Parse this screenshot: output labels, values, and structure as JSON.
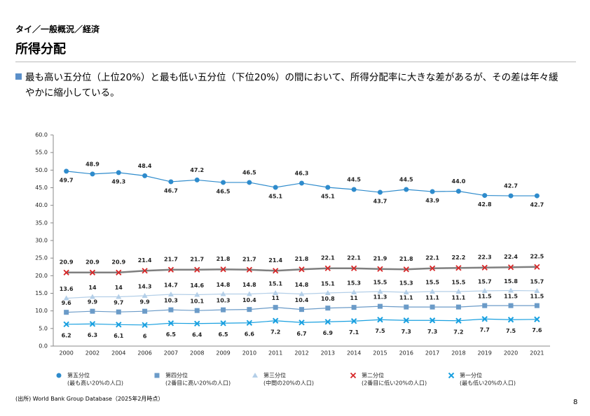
{
  "breadcrumb": "タイ／一般概況／経済",
  "heading": "所得分配",
  "bullet": "最も高い五分位（上位20%）と最も低い五分位（下位20%）の間において、所得分配率に大きな差があるが、その差は年々緩やかに縮小している。",
  "chart_data": {
    "type": "line",
    "categories": [
      "2000",
      "2002",
      "2004",
      "2006",
      "2007",
      "2008",
      "2009",
      "2010",
      "2011",
      "2012",
      "2013",
      "2014",
      "2015",
      "2016",
      "2017",
      "2018",
      "2019",
      "2020",
      "2021"
    ],
    "ylim": [
      0,
      60
    ],
    "yticks": [
      {
        "value": 0,
        "label": "0.0"
      },
      {
        "value": 5,
        "label": "5.0"
      },
      {
        "value": 10,
        "label": "10.0"
      },
      {
        "value": 15,
        "label": "15.0"
      },
      {
        "value": 20,
        "label": "20.0"
      },
      {
        "value": 25,
        "label": "25.0"
      },
      {
        "value": 30,
        "label": "30.0"
      },
      {
        "value": 35,
        "label": "35.0"
      },
      {
        "value": 40,
        "label": "40.0"
      },
      {
        "value": 45,
        "label": "45.0"
      },
      {
        "value": 50,
        "label": "50.0"
      },
      {
        "value": 55,
        "label": "55.0"
      },
      {
        "value": 60,
        "label": "60.0"
      }
    ],
    "series": [
      {
        "name": "第五分位",
        "note": "(最も高い20%の人口)",
        "color": "#2e8bcc",
        "marker": "circle",
        "values": [
          49.7,
          48.9,
          49.3,
          48.4,
          46.7,
          47.2,
          46.5,
          46.5,
          45.1,
          46.3,
          45.1,
          44.5,
          43.7,
          44.5,
          43.9,
          44,
          42.8,
          42.7,
          42.7
        ],
        "value_labels": [
          "49.7",
          "48.9",
          "49.3",
          "48.4",
          "46.7",
          "47.2",
          "46.5",
          "46.5",
          "45.1",
          "46.3",
          "45.1",
          "44.5",
          "43.7",
          "44.5",
          "43.9",
          "44.0",
          "42.8",
          "42.7",
          "42.7"
        ]
      },
      {
        "name": "第四分位",
        "note": "(2番目に高い20%の人口)",
        "color": "#6b9bc8",
        "marker": "square",
        "values": [
          9.6,
          9.9,
          9.7,
          9.9,
          10.3,
          10.1,
          10.3,
          10.4,
          11,
          10.4,
          10.8,
          11,
          11.3,
          11.1,
          11.1,
          11.1,
          11.5,
          11.5,
          11.5
        ]
      },
      {
        "name": "第三分位",
        "note": "(中間の20%の人口)",
        "color": "#b4cfe8",
        "marker": "triangle",
        "values": [
          13.6,
          14,
          14,
          14.3,
          14.7,
          14.6,
          14.8,
          14.8,
          15.1,
          14.8,
          15.1,
          15.3,
          15.5,
          15.3,
          15.5,
          15.5,
          15.7,
          15.8,
          15.7
        ]
      },
      {
        "name": "第二分位",
        "note": "(2番目に低い20%の人口)",
        "color": "#d62728",
        "line_color": "#7f7f7f",
        "marker": "cross",
        "values": [
          20.9,
          20.9,
          20.9,
          21.4,
          21.7,
          21.7,
          21.8,
          21.7,
          21.4,
          21.8,
          22.1,
          22.1,
          21.9,
          21.8,
          22.1,
          22.2,
          22.3,
          22.4,
          22.5
        ]
      },
      {
        "name": "第一分位",
        "note": "(最も低い20%の人口)",
        "color": "#19a0e0",
        "marker": "x",
        "values": [
          6.2,
          6.3,
          6.1,
          6,
          6.5,
          6.4,
          6.5,
          6.6,
          7.2,
          6.7,
          6.9,
          7.1,
          7.5,
          7.3,
          7.3,
          7.2,
          7.7,
          7.5,
          7.6
        ]
      }
    ]
  },
  "source": "(出所) World Bank Group Database（2025年2月時点）",
  "page": "8"
}
